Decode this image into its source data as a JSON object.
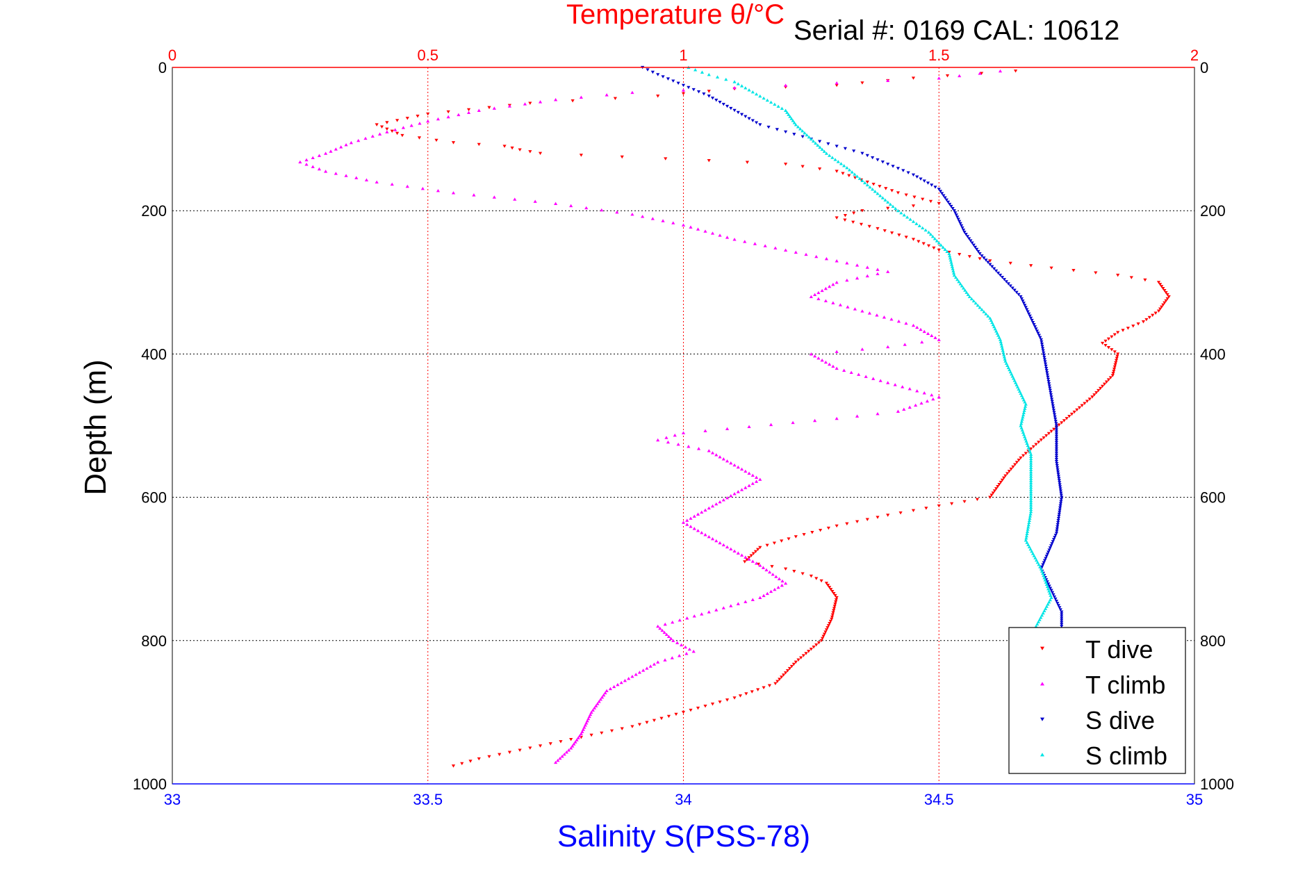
{
  "serial": "Serial #: 0169 CAL: 10612",
  "colors": {
    "t_dive": "#ff0000",
    "t_climb": "#ff00ff",
    "s_dive": "#0000cc",
    "s_climb": "#00e5e5",
    "top_axis": "#ff0000",
    "bottom_axis": "#0000ff",
    "frame": "#000000",
    "grid_temp": "#ff0000",
    "grid_depth": "#000000"
  },
  "chart_data": {
    "type": "scatter",
    "title": "Temperature θ/°C",
    "xlabel": "Salinity S(PSS-78)",
    "ylabel": "Depth (m)",
    "top_axis": {
      "label": "Temperature θ/°C",
      "range": [
        0,
        2
      ],
      "ticks": [
        "0",
        "0.5",
        "1",
        "1.5",
        "2"
      ]
    },
    "bottom_axis": {
      "label": "Salinity S(PSS-78)",
      "range": [
        33,
        35
      ],
      "ticks": [
        "33",
        "33.5",
        "34",
        "34.5",
        "35"
      ]
    },
    "y_axis": {
      "label": "Depth (m)",
      "range": [
        0,
        1000
      ],
      "reversed": true,
      "ticks": [
        "0",
        "200",
        "400",
        "600",
        "800",
        "1000"
      ]
    },
    "grid": true,
    "legend": {
      "placement": "bottom-right",
      "entries": [
        "T dive",
        "T climb",
        "S dive",
        "S climb"
      ]
    },
    "series": [
      {
        "name": "T dive",
        "axis": "temperature",
        "marker": "down-triangle",
        "points": [
          [
            1.65,
            5
          ],
          [
            1.45,
            15
          ],
          [
            1.3,
            25
          ],
          [
            1.1,
            30
          ],
          [
            0.95,
            40
          ],
          [
            0.7,
            50
          ],
          [
            0.5,
            65
          ],
          [
            0.4,
            80
          ],
          [
            0.45,
            95
          ],
          [
            0.55,
            105
          ],
          [
            0.65,
            110
          ],
          [
            0.68,
            115
          ],
          [
            0.72,
            120
          ],
          [
            0.88,
            125
          ],
          [
            1.05,
            130
          ],
          [
            1.2,
            135
          ],
          [
            1.3,
            145
          ],
          [
            1.36,
            160
          ],
          [
            1.42,
            175
          ],
          [
            1.5,
            190
          ],
          [
            1.35,
            200
          ],
          [
            1.3,
            210
          ],
          [
            1.38,
            225
          ],
          [
            1.45,
            240
          ],
          [
            1.5,
            255
          ],
          [
            1.6,
            270
          ],
          [
            1.72,
            280
          ],
          [
            1.85,
            290
          ],
          [
            1.93,
            300
          ],
          [
            1.95,
            320
          ],
          [
            1.93,
            340
          ],
          [
            1.9,
            355
          ],
          [
            1.85,
            370
          ],
          [
            1.82,
            385
          ],
          [
            1.85,
            400
          ],
          [
            1.84,
            430
          ],
          [
            1.8,
            460
          ],
          [
            1.75,
            490
          ],
          [
            1.7,
            520
          ],
          [
            1.66,
            545
          ],
          [
            1.63,
            570
          ],
          [
            1.6,
            600
          ],
          [
            1.5,
            612
          ],
          [
            1.4,
            625
          ],
          [
            1.3,
            640
          ],
          [
            1.22,
            655
          ],
          [
            1.15,
            670
          ],
          [
            1.12,
            690
          ],
          [
            1.2,
            700
          ],
          [
            1.25,
            710
          ],
          [
            1.28,
            720
          ],
          [
            1.3,
            740
          ],
          [
            1.29,
            770
          ],
          [
            1.27,
            800
          ],
          [
            1.22,
            830
          ],
          [
            1.18,
            860
          ],
          [
            1.1,
            880
          ],
          [
            1.0,
            900
          ],
          [
            0.9,
            920
          ],
          [
            0.8,
            935
          ],
          [
            0.7,
            950
          ],
          [
            0.6,
            965
          ],
          [
            0.55,
            975
          ]
        ]
      },
      {
        "name": "T climb",
        "axis": "temperature",
        "marker": "up-triangle",
        "points": [
          [
            1.62,
            5
          ],
          [
            1.5,
            15
          ],
          [
            1.2,
            25
          ],
          [
            0.9,
            35
          ],
          [
            0.75,
            45
          ],
          [
            0.6,
            60
          ],
          [
            0.5,
            75
          ],
          [
            0.42,
            90
          ],
          [
            0.35,
            105
          ],
          [
            0.3,
            120
          ],
          [
            0.25,
            132
          ],
          [
            0.3,
            145
          ],
          [
            0.4,
            160
          ],
          [
            0.55,
            175
          ],
          [
            0.75,
            190
          ],
          [
            0.9,
            205
          ],
          [
            1.0,
            220
          ],
          [
            1.1,
            240
          ],
          [
            1.2,
            255
          ],
          [
            1.3,
            270
          ],
          [
            1.4,
            285
          ],
          [
            1.3,
            300
          ],
          [
            1.25,
            320
          ],
          [
            1.35,
            340
          ],
          [
            1.45,
            360
          ],
          [
            1.5,
            380
          ],
          [
            1.4,
            390
          ],
          [
            1.25,
            400
          ],
          [
            1.3,
            420
          ],
          [
            1.4,
            440
          ],
          [
            1.5,
            460
          ],
          [
            1.42,
            480
          ],
          [
            1.3,
            490
          ],
          [
            1.0,
            510
          ],
          [
            0.95,
            520
          ],
          [
            1.05,
            535
          ],
          [
            1.1,
            555
          ],
          [
            1.15,
            575
          ],
          [
            1.1,
            595
          ],
          [
            1.05,
            615
          ],
          [
            1.0,
            635
          ],
          [
            1.05,
            655
          ],
          [
            1.1,
            675
          ],
          [
            1.15,
            695
          ],
          [
            1.2,
            720
          ],
          [
            1.15,
            740
          ],
          [
            1.05,
            760
          ],
          [
            0.95,
            780
          ],
          [
            0.98,
            800
          ],
          [
            1.02,
            815
          ],
          [
            0.95,
            830
          ],
          [
            0.9,
            850
          ],
          [
            0.85,
            870
          ],
          [
            0.82,
            900
          ],
          [
            0.8,
            930
          ],
          [
            0.78,
            950
          ],
          [
            0.75,
            970
          ]
        ]
      },
      {
        "name": "S dive",
        "axis": "salinity",
        "marker": "down-triangle",
        "points": [
          [
            33.92,
            0
          ],
          [
            33.95,
            10
          ],
          [
            34.0,
            25
          ],
          [
            34.05,
            40
          ],
          [
            34.1,
            60
          ],
          [
            34.15,
            80
          ],
          [
            34.2,
            90
          ],
          [
            34.25,
            100
          ],
          [
            34.3,
            110
          ],
          [
            34.35,
            120
          ],
          [
            34.4,
            135
          ],
          [
            34.45,
            150
          ],
          [
            34.5,
            170
          ],
          [
            34.53,
            200
          ],
          [
            34.55,
            230
          ],
          [
            34.58,
            260
          ],
          [
            34.62,
            290
          ],
          [
            34.66,
            320
          ],
          [
            34.68,
            350
          ],
          [
            34.7,
            380
          ],
          [
            34.71,
            420
          ],
          [
            34.72,
            460
          ],
          [
            34.73,
            500
          ],
          [
            34.73,
            550
          ],
          [
            34.74,
            600
          ],
          [
            34.73,
            650
          ],
          [
            34.7,
            700
          ],
          [
            34.72,
            730
          ],
          [
            34.74,
            760
          ],
          [
            34.74,
            780
          ]
        ]
      },
      {
        "name": "S climb",
        "axis": "salinity",
        "marker": "up-triangle",
        "points": [
          [
            34.01,
            0
          ],
          [
            34.05,
            10
          ],
          [
            34.1,
            20
          ],
          [
            34.15,
            40
          ],
          [
            34.2,
            60
          ],
          [
            34.22,
            80
          ],
          [
            34.25,
            100
          ],
          [
            34.28,
            120
          ],
          [
            34.32,
            140
          ],
          [
            34.37,
            170
          ],
          [
            34.42,
            200
          ],
          [
            34.48,
            230
          ],
          [
            34.52,
            260
          ],
          [
            34.53,
            290
          ],
          [
            34.56,
            320
          ],
          [
            34.6,
            350
          ],
          [
            34.62,
            380
          ],
          [
            34.63,
            410
          ],
          [
            34.65,
            440
          ],
          [
            34.67,
            470
          ],
          [
            34.66,
            500
          ],
          [
            34.68,
            540
          ],
          [
            34.68,
            580
          ],
          [
            34.68,
            620
          ],
          [
            34.67,
            660
          ],
          [
            34.7,
            700
          ],
          [
            34.72,
            740
          ],
          [
            34.69,
            780
          ]
        ]
      }
    ]
  }
}
